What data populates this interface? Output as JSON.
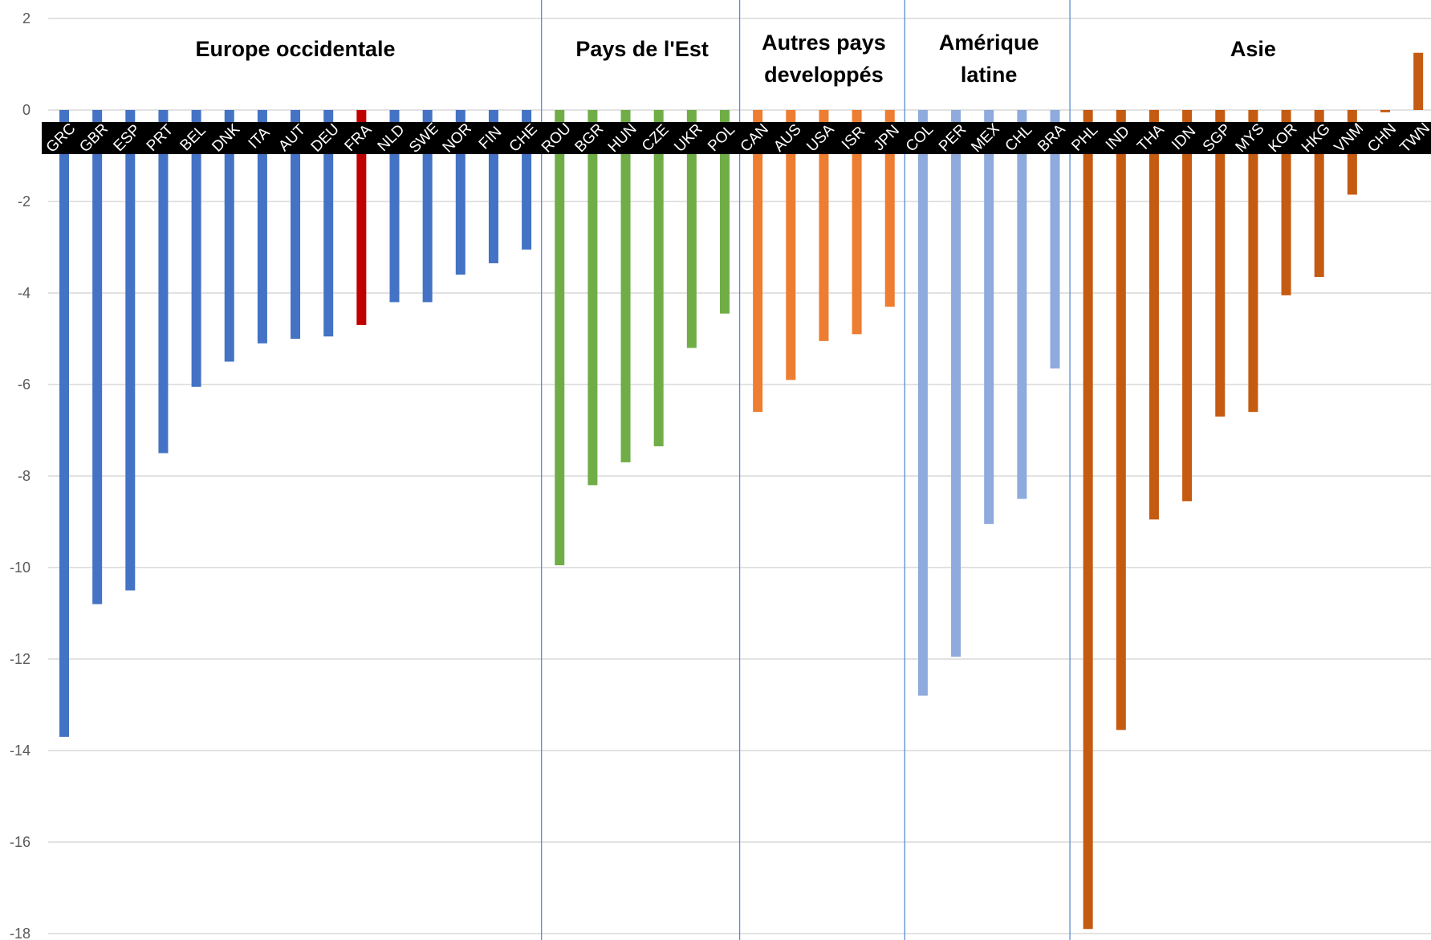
{
  "chart_data": {
    "type": "bar",
    "ylim": [
      -18,
      2
    ],
    "y_ticks": [
      "2",
      "0",
      "-2",
      "-4",
      "-6",
      "-8",
      "-10",
      "-12",
      "-14",
      "-16",
      "-18"
    ],
    "grid": true,
    "legend": "none",
    "categories": [
      "GRC",
      "GBR",
      "ESP",
      "PRT",
      "BEL",
      "DNK",
      "ITA",
      "AUT",
      "DEU",
      "FRA",
      "NLD",
      "SWE",
      "NOR",
      "FIN",
      "CHE",
      "ROU",
      "BGR",
      "HUN",
      "CZE",
      "UKR",
      "POL",
      "CAN",
      "AUS",
      "USA",
      "ISR",
      "JPN",
      "COL",
      "PER",
      "MEX",
      "CHL",
      "BRA",
      "PHL",
      "IND",
      "THA",
      "IDN",
      "SGP",
      "MYS",
      "KOR",
      "HKG",
      "VNM",
      "CHN",
      "TWN"
    ],
    "values": [
      -13.7,
      -10.8,
      -10.5,
      -7.5,
      -6.05,
      -5.5,
      -5.1,
      -5.0,
      -4.95,
      -4.7,
      -4.2,
      -4.2,
      -3.6,
      -3.35,
      -3.05,
      -9.95,
      -8.2,
      -7.7,
      -7.35,
      -5.2,
      -4.45,
      -6.6,
      -5.9,
      -5.05,
      -4.9,
      -4.3,
      -12.8,
      -11.95,
      -9.05,
      -8.5,
      -5.65,
      -17.9,
      -13.55,
      -8.95,
      -8.55,
      -6.7,
      -6.6,
      -4.05,
      -3.65,
      -1.85,
      -0.05,
      1.25
    ],
    "highlight": {
      "category": "FRA",
      "color": "#C00000"
    },
    "groups": [
      {
        "name": "Europe occidentale",
        "start": 0,
        "end": 14,
        "color": "#4472C4"
      },
      {
        "name": "Pays de l'Est",
        "start": 15,
        "end": 20,
        "color": "#70AD47"
      },
      {
        "name_lines": [
          "Autres pays",
          "developpés"
        ],
        "start": 21,
        "end": 25,
        "color": "#ED7D31"
      },
      {
        "name_lines": [
          "Amérique",
          "latine"
        ],
        "start": 26,
        "end": 30,
        "color": "#8FAADC"
      },
      {
        "name": "Asie",
        "start": 31,
        "end": 41,
        "color": "#C55A11"
      }
    ],
    "colors": {
      "grid": "#D9D9D9",
      "divider": "#5B8BD6",
      "label_bg": "#000000",
      "label_text": "#ffffff"
    }
  }
}
